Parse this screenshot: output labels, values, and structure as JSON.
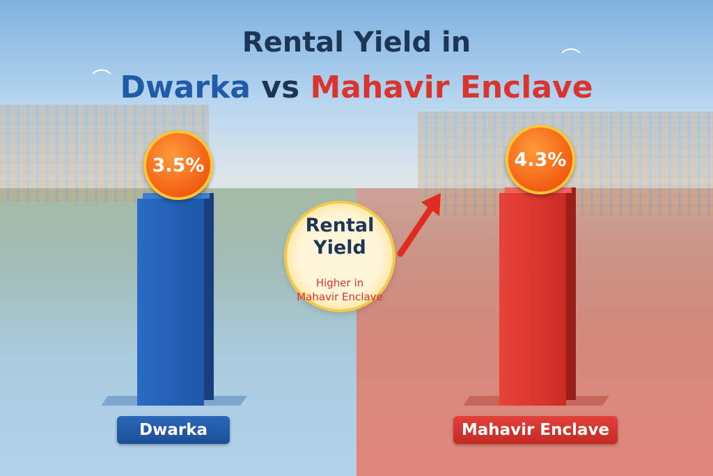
{
  "title_line1": "Rental Yield in",
  "title_line2": {
    "left": "Dwarka",
    "vs": "vs",
    "right": "Mahavir Enclave"
  },
  "center_badge": {
    "line1": "Rental",
    "line2": "Yield",
    "sub1": "Higher in",
    "sub2": "Mahavir Enclave",
    "icon": "arrow-up-right-icon"
  },
  "colors": {
    "dwarka": "#1f5ba6",
    "mahavir": "#d93530",
    "title": "#1d3557",
    "badge": "#f05a10"
  },
  "chart_data": {
    "type": "bar",
    "categories": [
      "Dwarka",
      "Mahavir Enclave"
    ],
    "values": [
      3.5,
      4.3
    ],
    "data_labels": [
      "3.5%",
      "4.3%"
    ],
    "unit": "%"
  }
}
